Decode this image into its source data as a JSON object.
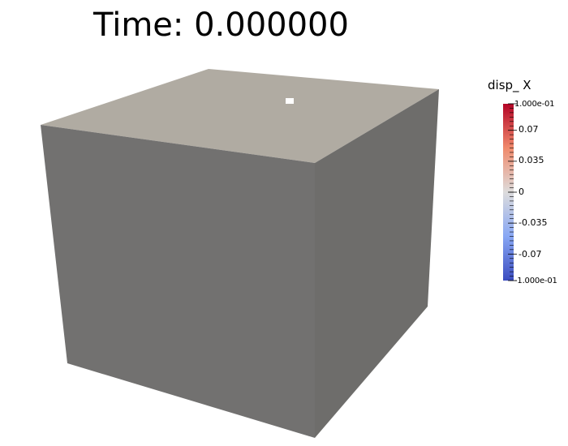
{
  "annotation": {
    "time_text": "Time: 0.000000"
  },
  "colorbar": {
    "title": "disp_ X",
    "range": [
      -0.1,
      0.1
    ],
    "colormap": "Cool to Warm",
    "colors": {
      "max": "#b40426",
      "mid": "#dddcdc",
      "min": "#3b4cc0"
    },
    "labels": [
      {
        "value": 0.1,
        "text": "1.000e-01"
      },
      {
        "value": 0.07,
        "text": "0.07"
      },
      {
        "value": 0.035,
        "text": "0.035"
      },
      {
        "value": 0,
        "text": "0"
      },
      {
        "value": -0.035,
        "text": "-0.035"
      },
      {
        "value": -0.07,
        "text": "-0.07"
      },
      {
        "value": -0.1,
        "text": "-1.000e-01"
      }
    ],
    "minor_tick_count": 41
  },
  "scene": {
    "background": "#ffffff",
    "object": "cube",
    "face_colors": {
      "top": "#b0aba2",
      "front": "#727170",
      "right": "#6e6d6b"
    },
    "marker_color": "#ffffff"
  }
}
